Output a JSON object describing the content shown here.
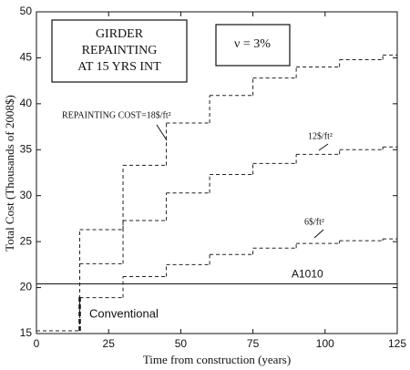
{
  "chart_data": {
    "type": "step",
    "title_box": [
      "GIRDER",
      "REPAINTING",
      "AT 15 YRS INT"
    ],
    "rate_box": "ν = 3%",
    "xlabel": "Time from construction (years)",
    "ylabel": "Total Cost (Thousands of 2008$)",
    "xlim": [
      0,
      125
    ],
    "ylim": [
      15,
      50
    ],
    "xticks": [
      0,
      25,
      50,
      75,
      100,
      125
    ],
    "yticks": [
      15,
      20,
      25,
      30,
      35,
      40,
      45,
      50
    ],
    "series": [
      {
        "name": "REPAINTING COST=18$/ft²",
        "color": "#222",
        "x": [
          0,
          15,
          30,
          45,
          60,
          75,
          90,
          105,
          120
        ],
        "values": [
          15.3,
          26.3,
          33.3,
          37.9,
          40.9,
          42.8,
          44.0,
          44.8,
          45.3
        ]
      },
      {
        "name": "12$/ft²",
        "color": "#222",
        "x": [
          0,
          15,
          30,
          45,
          60,
          75,
          90,
          105,
          120
        ],
        "values": [
          15.3,
          22.6,
          27.3,
          30.3,
          32.3,
          33.5,
          34.5,
          35.0,
          35.3
        ]
      },
      {
        "name": "6$/ft²",
        "color": "#222",
        "x": [
          0,
          15,
          30,
          45,
          60,
          75,
          90,
          105,
          120
        ],
        "values": [
          15.3,
          18.9,
          21.2,
          22.5,
          23.6,
          24.3,
          24.8,
          25.1,
          25.3
        ]
      }
    ],
    "conventional": {
      "name": "Conventional",
      "x": [
        15,
        15
      ],
      "values": [
        15.3,
        19.2
      ]
    },
    "reference_line": {
      "name": "A1010",
      "value": 20.4
    }
  }
}
